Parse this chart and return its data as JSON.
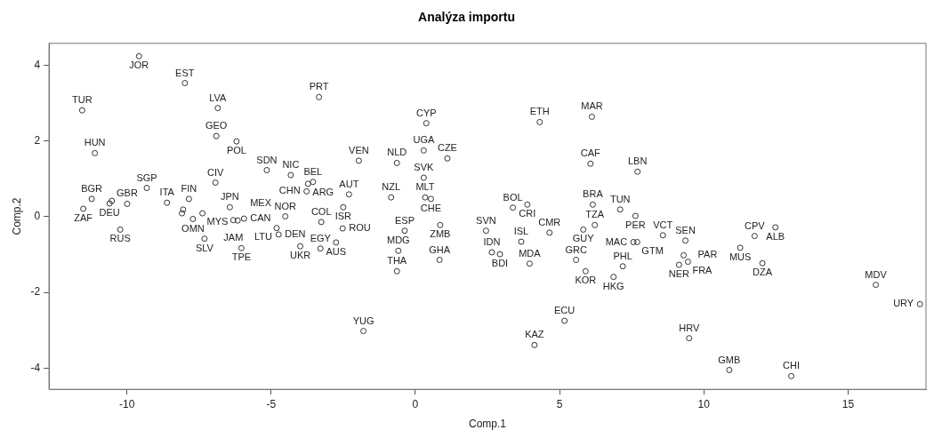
{
  "chart_data": {
    "type": "scatter",
    "title": "Analýza importu",
    "xlabel": "Comp.1",
    "ylabel": "Comp.2",
    "marker": "circle",
    "legend": false,
    "grid": false,
    "xlim": [
      -12.7,
      17.7
    ],
    "ylim": [
      -4.56,
      4.58
    ],
    "xticks": [
      -10,
      -5,
      0,
      5,
      10,
      15
    ],
    "yticks": [
      -4,
      -2,
      0,
      2,
      4
    ],
    "series": [
      {
        "color": "#333333",
        "x": [
          -9.58,
          -7.99,
          -11.55,
          -6.85,
          -3.34,
          -6.9,
          -6.2,
          -11.11,
          -5.15,
          -4.32,
          -3.55,
          -3.72,
          -3.77,
          -9.31,
          -6.93,
          -11.22,
          -11.51,
          -10.6,
          -10.52,
          -9.99,
          -10.23,
          -8.61,
          -7.38,
          -7.71,
          -7.85,
          -8.09,
          -8.05,
          -6.43,
          -6.31,
          -6.16,
          -5.94,
          -7.31,
          -6.03,
          -4.51,
          -4.81,
          -4.74,
          -3.99,
          -3.29,
          -3.26,
          -2.75,
          -2.52,
          -2.5,
          -2.3,
          0.38,
          4.31,
          6.12,
          -1.96,
          -0.64,
          0.29,
          1.11,
          6.07,
          7.7,
          0.29,
          -0.84,
          0.34,
          0.54,
          3.38,
          3.88,
          6.15,
          7.1,
          7.63,
          6.22,
          5.82,
          0.86,
          -0.37,
          2.45,
          4.65,
          3.67,
          -0.59,
          0.84,
          2.65,
          2.93,
          3.96,
          5.57,
          5.9,
          -0.64,
          6.87,
          7.19,
          7.56,
          7.69,
          -1.8,
          5.17,
          4.13,
          8.58,
          9.36,
          9.3,
          9.45,
          9.14,
          11.26,
          11.76,
          12.48,
          12.03,
          15.96,
          17.49,
          9.49,
          10.88,
          13.03
        ],
        "values": [
          4.24,
          3.53,
          2.81,
          2.87,
          3.16,
          2.13,
          1.99,
          1.68,
          1.23,
          1.1,
          0.92,
          0.87,
          0.67,
          0.76,
          0.9,
          0.47,
          0.21,
          0.35,
          0.42,
          0.34,
          -0.34,
          0.37,
          0.09,
          -0.06,
          0.47,
          0.09,
          0.19,
          0.25,
          -0.09,
          -0.1,
          -0.05,
          -0.58,
          -0.83,
          0.01,
          -0.3,
          -0.47,
          -0.78,
          -0.84,
          -0.14,
          -0.68,
          -0.31,
          0.25,
          0.59,
          2.47,
          2.5,
          2.64,
          1.48,
          1.42,
          1.75,
          1.54,
          1.4,
          1.19,
          1.03,
          0.51,
          0.51,
          0.47,
          0.24,
          0.32,
          0.32,
          0.19,
          0.02,
          -0.22,
          -0.34,
          -0.22,
          -0.37,
          -0.37,
          -0.42,
          -0.66,
          -0.9,
          -1.14,
          -0.94,
          -0.99,
          -1.24,
          -1.14,
          -1.44,
          -1.44,
          -1.59,
          -1.31,
          -0.67,
          -0.67,
          -3.02,
          -2.75,
          -3.39,
          -0.49,
          -0.63,
          -1.02,
          -1.19,
          -1.27,
          -0.82,
          -0.51,
          -0.28,
          -1.23,
          -1.8,
          -2.31,
          -3.21,
          -4.05,
          -4.21
        ]
      }
    ],
    "annotations": [
      {
        "text": "JOR",
        "x": -9.58,
        "y": 4.24
      },
      {
        "text": "EST",
        "x": -7.99,
        "y": 3.53
      },
      {
        "text": "TUR",
        "x": -11.55,
        "y": 2.81
      },
      {
        "text": "LVA",
        "x": -6.85,
        "y": 2.87
      },
      {
        "text": "PRT",
        "x": -3.34,
        "y": 3.16
      },
      {
        "text": "GEO",
        "x": -6.9,
        "y": 2.13
      },
      {
        "text": "POL",
        "x": -6.2,
        "y": 1.99
      },
      {
        "text": "HUN",
        "x": -11.11,
        "y": 1.68
      },
      {
        "text": "SDN",
        "x": -5.15,
        "y": 1.23
      },
      {
        "text": "NIC",
        "x": -4.32,
        "y": 1.1
      },
      {
        "text": "BEL",
        "x": -3.55,
        "y": 0.92
      },
      {
        "text": "ARG",
        "x": -3.72,
        "y": 0.87
      },
      {
        "text": "CHN",
        "x": -3.77,
        "y": 0.67
      },
      {
        "text": "SGP",
        "x": -9.31,
        "y": 0.76
      },
      {
        "text": "CIV",
        "x": -6.93,
        "y": 0.9
      },
      {
        "text": "BGR",
        "x": -11.22,
        "y": 0.47
      },
      {
        "text": "ZAF",
        "x": -11.51,
        "y": 0.21
      },
      {
        "text": "DEU",
        "x": -10.6,
        "y": 0.35
      },
      {
        "text": "GBR",
        "x": -9.99,
        "y": 0.34
      },
      {
        "text": "RUS",
        "x": -10.23,
        "y": -0.34
      },
      {
        "text": "ITA",
        "x": -8.61,
        "y": 0.37
      },
      {
        "text": "MYS",
        "x": -7.38,
        "y": 0.09
      },
      {
        "text": "OMN",
        "x": -7.71,
        "y": -0.06
      },
      {
        "text": "FIN",
        "x": -7.85,
        "y": 0.47
      },
      {
        "text": "JPN",
        "x": -6.43,
        "y": 0.25
      },
      {
        "text": "JAM",
        "x": -6.31,
        "y": -0.09
      },
      {
        "text": "MEX",
        "x": -6.16,
        "y": -0.1
      },
      {
        "text": "CAN",
        "x": -5.94,
        "y": -0.05
      },
      {
        "text": "SLV",
        "x": -7.31,
        "y": -0.58
      },
      {
        "text": "TPE",
        "x": -6.03,
        "y": -0.83
      },
      {
        "text": "NOR",
        "x": -4.51,
        "y": 0.01
      },
      {
        "text": "LTU",
        "x": -4.81,
        "y": -0.3
      },
      {
        "text": "DEN",
        "x": -4.74,
        "y": -0.47
      },
      {
        "text": "UKR",
        "x": -3.99,
        "y": -0.78
      },
      {
        "text": "EGY",
        "x": -3.29,
        "y": -0.84
      },
      {
        "text": "COL",
        "x": -3.26,
        "y": -0.14
      },
      {
        "text": "AUS",
        "x": -2.75,
        "y": -0.68
      },
      {
        "text": "ROU",
        "x": -2.52,
        "y": -0.31
      },
      {
        "text": "ISR",
        "x": -2.5,
        "y": 0.25
      },
      {
        "text": "AUT",
        "x": -2.3,
        "y": 0.59
      },
      {
        "text": "CYP",
        "x": 0.38,
        "y": 2.47
      },
      {
        "text": "ETH",
        "x": 4.31,
        "y": 2.5
      },
      {
        "text": "MAR",
        "x": 6.12,
        "y": 2.64
      },
      {
        "text": "VEN",
        "x": -1.96,
        "y": 1.48
      },
      {
        "text": "NLD",
        "x": -0.64,
        "y": 1.42
      },
      {
        "text": "UGA",
        "x": 0.29,
        "y": 1.75
      },
      {
        "text": "CZE",
        "x": 1.11,
        "y": 1.54
      },
      {
        "text": "CAF",
        "x": 6.07,
        "y": 1.4
      },
      {
        "text": "LBN",
        "x": 7.7,
        "y": 1.19
      },
      {
        "text": "SVK",
        "x": 0.29,
        "y": 1.03
      },
      {
        "text": "NZL",
        "x": -0.84,
        "y": 0.51
      },
      {
        "text": "MLT",
        "x": 0.34,
        "y": 0.51
      },
      {
        "text": "CHE",
        "x": 0.54,
        "y": 0.47
      },
      {
        "text": "BOL",
        "x": 3.38,
        "y": 0.24
      },
      {
        "text": "CRI",
        "x": 3.88,
        "y": 0.32
      },
      {
        "text": "BRA",
        "x": 6.15,
        "y": 0.32
      },
      {
        "text": "TUN",
        "x": 7.1,
        "y": 0.19
      },
      {
        "text": "PER",
        "x": 7.63,
        "y": 0.02
      },
      {
        "text": "TZA",
        "x": 6.22,
        "y": -0.22
      },
      {
        "text": "GUY",
        "x": 5.82,
        "y": -0.34
      },
      {
        "text": "ZMB",
        "x": 0.86,
        "y": -0.22
      },
      {
        "text": "ESP",
        "x": -0.37,
        "y": -0.37
      },
      {
        "text": "SVN",
        "x": 2.45,
        "y": -0.37
      },
      {
        "text": "CMR",
        "x": 4.65,
        "y": -0.42
      },
      {
        "text": "ISL",
        "x": 3.67,
        "y": -0.66
      },
      {
        "text": "MDG",
        "x": -0.59,
        "y": -0.9
      },
      {
        "text": "GHA",
        "x": 0.84,
        "y": -1.14
      },
      {
        "text": "IDN",
        "x": 2.65,
        "y": -0.94
      },
      {
        "text": "BDI",
        "x": 2.93,
        "y": -0.99
      },
      {
        "text": "MDA",
        "x": 3.96,
        "y": -1.24
      },
      {
        "text": "GRC",
        "x": 5.57,
        "y": -1.14
      },
      {
        "text": "KOR",
        "x": 5.9,
        "y": -1.44
      },
      {
        "text": "THA",
        "x": -0.64,
        "y": -1.44
      },
      {
        "text": "HKG",
        "x": 6.87,
        "y": -1.59
      },
      {
        "text": "PHL",
        "x": 7.19,
        "y": -1.31
      },
      {
        "text": "MAC",
        "x": 7.56,
        "y": -0.67
      },
      {
        "text": "GTM",
        "x": 7.69,
        "y": -0.67
      },
      {
        "text": "YUG",
        "x": -1.8,
        "y": -3.02
      },
      {
        "text": "ECU",
        "x": 5.17,
        "y": -2.75
      },
      {
        "text": "KAZ",
        "x": 4.13,
        "y": -3.39
      },
      {
        "text": "VCT",
        "x": 8.58,
        "y": -0.49
      },
      {
        "text": "SEN",
        "x": 9.36,
        "y": -0.63
      },
      {
        "text": "PAR",
        "x": 9.3,
        "y": -1.02
      },
      {
        "text": "FRA",
        "x": 9.45,
        "y": -1.19
      },
      {
        "text": "NER",
        "x": 9.14,
        "y": -1.27
      },
      {
        "text": "MUS",
        "x": 11.26,
        "y": -0.82
      },
      {
        "text": "CPV",
        "x": 11.76,
        "y": -0.51
      },
      {
        "text": "ALB",
        "x": 12.48,
        "y": -0.28
      },
      {
        "text": "DZA",
        "x": 12.03,
        "y": -1.23
      },
      {
        "text": "MDV",
        "x": 15.96,
        "y": -1.8
      },
      {
        "text": "URY",
        "x": 17.49,
        "y": -2.31
      },
      {
        "text": "HRV",
        "x": 9.49,
        "y": -3.21
      },
      {
        "text": "GMB",
        "x": 10.88,
        "y": -4.05
      },
      {
        "text": "CHI",
        "x": 13.03,
        "y": -4.21
      }
    ]
  }
}
